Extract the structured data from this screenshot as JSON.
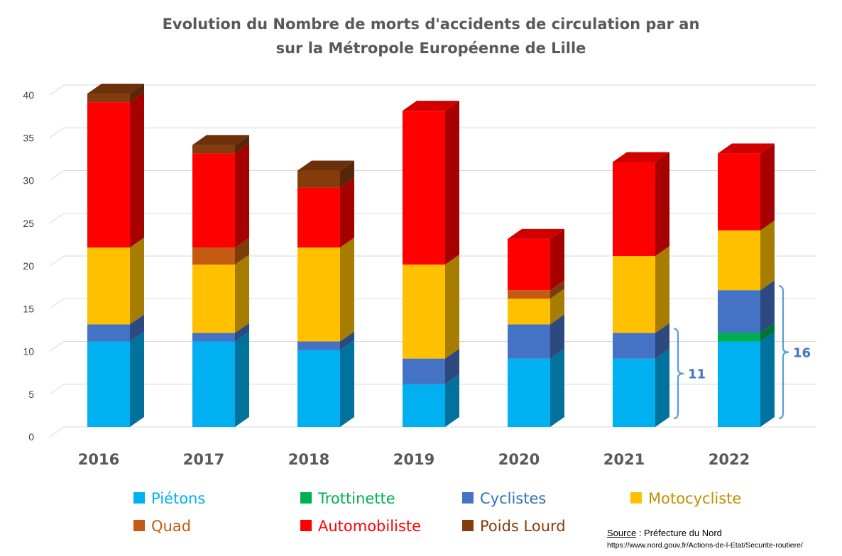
{
  "chart_data": {
    "type": "bar",
    "stacked": true,
    "style": "3d-columns",
    "title_lines": [
      "Evolution du Nombre de morts d'accidents de circulation par an",
      "sur la Métropole Européenne de Lille"
    ],
    "categories": [
      "2016",
      "2017",
      "2018",
      "2019",
      "2020",
      "2021",
      "2022"
    ],
    "ylim": [
      0,
      40
    ],
    "yticks": [
      "0",
      "5",
      "10",
      "15",
      "20",
      "25",
      "30",
      "35",
      "40"
    ],
    "grid": true,
    "legend_position": "bottom",
    "series": [
      {
        "name": "Piétons",
        "color": "#00B0F0",
        "text_color": "#00B0F0",
        "values": [
          10,
          10,
          9,
          5,
          8,
          8,
          10
        ]
      },
      {
        "name": "Trottinette",
        "color": "#00B050",
        "text_color": "#00B050",
        "values": [
          0,
          0,
          0,
          0,
          0,
          0,
          1
        ]
      },
      {
        "name": "Cyclistes",
        "color": "#4472C4",
        "text_color": "#2E75B6",
        "values": [
          2,
          1,
          1,
          3,
          4,
          3,
          5
        ]
      },
      {
        "name": "Motocycliste",
        "color": "#FFC000",
        "text_color": "#BF9000",
        "values": [
          9,
          8,
          11,
          11,
          3,
          9,
          7
        ]
      },
      {
        "name": "Quad",
        "color": "#C55A11",
        "text_color": "#C55A11",
        "values": [
          0,
          2,
          0,
          0,
          1,
          0,
          0
        ]
      },
      {
        "name": "Automobiliste",
        "color": "#FF0000",
        "text_color": "#FF0000",
        "values": [
          17,
          11,
          7,
          18,
          6,
          11,
          9
        ]
      },
      {
        "name": "Poids Lourd",
        "color": "#843C0C",
        "text_color": "#843C0C",
        "values": [
          1,
          1,
          2,
          0,
          0,
          0,
          0
        ]
      }
    ],
    "annotations": [
      {
        "category": "2021",
        "label": "11",
        "range": [
          0,
          11
        ]
      },
      {
        "category": "2022",
        "label": "16",
        "range": [
          0,
          16
        ]
      }
    ],
    "bracket_color": "#5B9BD5"
  },
  "source": {
    "label": "Source",
    "text": " : Préfecture du Nord",
    "url": "https://www.nord.gouv.fr/Actions-de-l-Etat/Securite-routiere/"
  }
}
